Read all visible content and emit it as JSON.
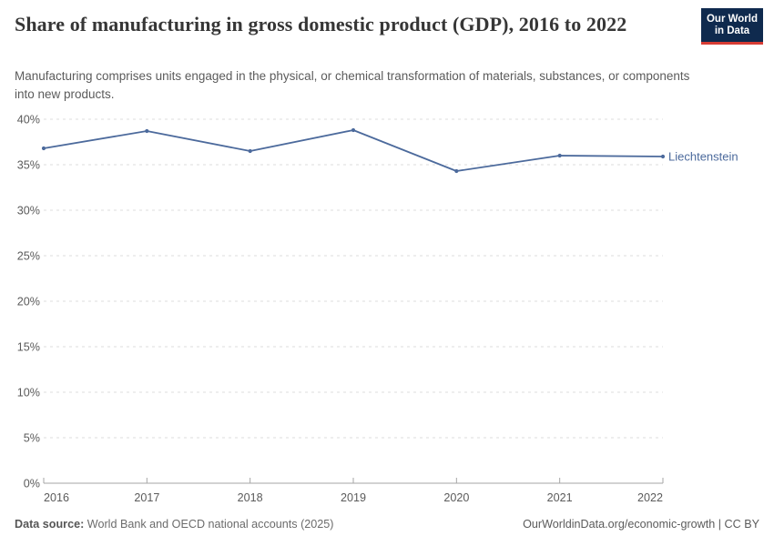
{
  "logo": {
    "line1": "Our World",
    "line2": "in Data",
    "bg_color": "#0f2a4e",
    "accent_color": "#d73c34"
  },
  "chart_data": {
    "type": "line",
    "title": "Share of manufacturing in gross domestic product (GDP), 2016 to 2022",
    "subtitle": "Manufacturing comprises units engaged in the physical, or chemical transformation of materials, substances, or components into new products.",
    "x": [
      2016,
      2017,
      2018,
      2019,
      2020,
      2021,
      2022
    ],
    "series": [
      {
        "name": "Liechtenstein",
        "color": "#4c6a9c",
        "values": [
          36.8,
          38.7,
          36.5,
          38.8,
          34.3,
          36.0,
          35.9
        ]
      }
    ],
    "ylim": [
      0,
      40
    ],
    "yticks": [
      0,
      5,
      10,
      15,
      20,
      25,
      30,
      35,
      40
    ],
    "ytick_suffix": "%",
    "xlabel": "",
    "ylabel": "",
    "grid": "horizontal-dashed",
    "legend": "line-end-label",
    "grid_color": "#dcdcdc",
    "axis_color": "#a6a6a6",
    "tick_label_color": "#5b5b5b"
  },
  "footer": {
    "source_label": "Data source:",
    "source_text": "World Bank and OECD national accounts (2025)",
    "credit": "OurWorldinData.org/economic-growth | CC BY"
  }
}
